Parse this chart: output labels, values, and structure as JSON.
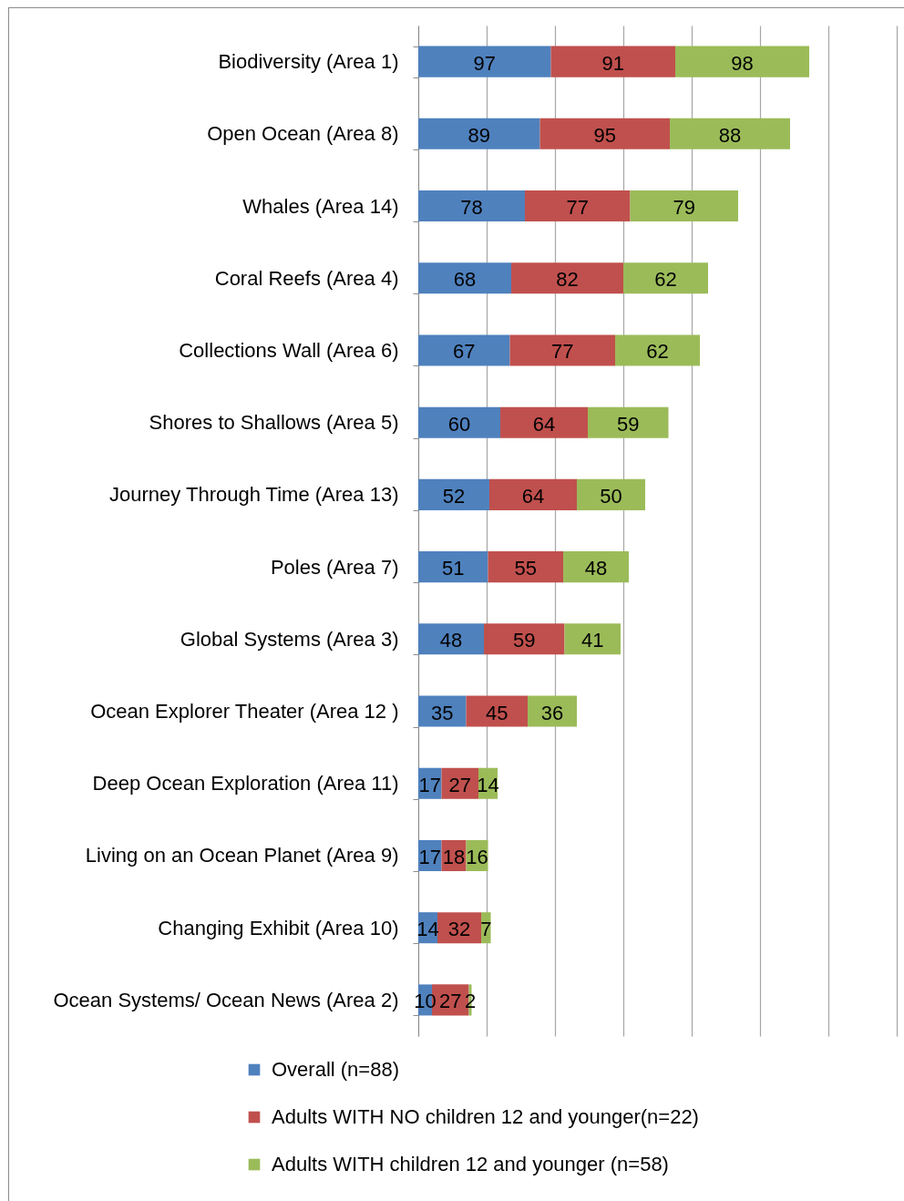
{
  "chart_data": {
    "type": "bar",
    "orientation": "horizontal",
    "stacked": true,
    "categories": [
      "Biodiversity (Area 1)",
      "Open Ocean (Area 8)",
      "Whales (Area 14)",
      "Coral Reefs (Area 4)",
      "Collections Wall (Area 6)",
      "Shores to Shallows (Area 5)",
      "Journey Through Time (Area 13)",
      "Poles (Area 7)",
      "Global Systems (Area 3)",
      "Ocean Explorer Theater (Area 12 )",
      "Deep Ocean Exploration (Area 11)",
      "Living on an Ocean Planet (Area 9)",
      "Changing Exhibit (Area 10)",
      "Ocean Systems/ Ocean News (Area 2)"
    ],
    "series": [
      {
        "name": "Overall (n=88)",
        "color": "#4f81bd",
        "values": [
          97,
          89,
          78,
          68,
          67,
          60,
          52,
          51,
          48,
          35,
          17,
          17,
          14,
          10
        ]
      },
      {
        "name": "Adults WITH NO children 12 and younger(n=22)",
        "color": "#c0504d",
        "values": [
          91,
          95,
          77,
          82,
          77,
          64,
          64,
          55,
          59,
          45,
          27,
          18,
          32,
          27
        ]
      },
      {
        "name": "Adults WITH children 12 and younger (n=58)",
        "color": "#9bbb59",
        "values": [
          98,
          88,
          79,
          62,
          62,
          59,
          50,
          48,
          41,
          36,
          14,
          16,
          7,
          2
        ]
      }
    ],
    "xlim": [
      0,
      350
    ],
    "xticks": [
      {
        "value": 0,
        "label": null
      },
      {
        "value": 50,
        "label": null
      },
      {
        "value": 100,
        "label": null
      },
      {
        "value": 150,
        "label": null
      },
      {
        "value": 200,
        "label": null
      },
      {
        "value": 250,
        "label": null
      },
      {
        "value": 300,
        "label": null
      },
      {
        "value": 350,
        "label": null
      }
    ],
    "grid": "x",
    "tick_labels": "y",
    "data_labels": true,
    "legend": "bottom"
  }
}
